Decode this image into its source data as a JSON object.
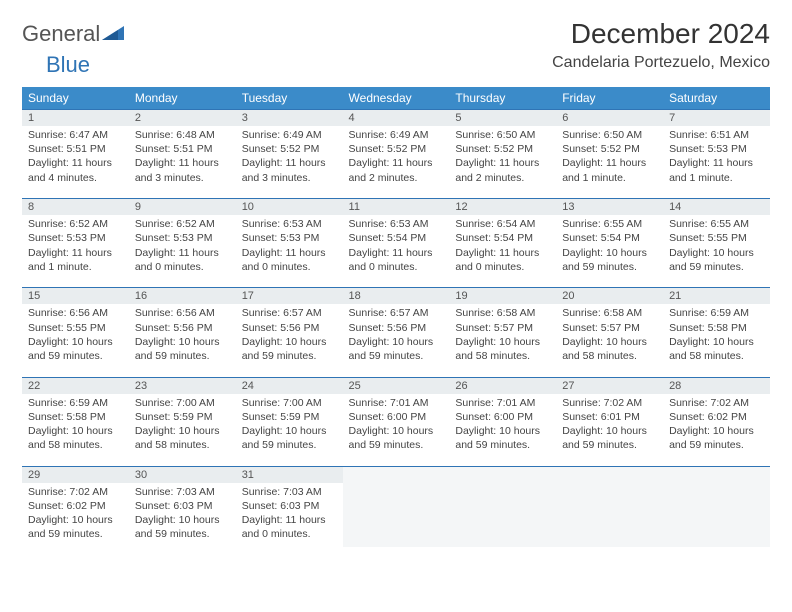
{
  "brand": {
    "name1": "General",
    "name2": "Blue"
  },
  "title": "December 2024",
  "location": "Candelaria Portezuelo, Mexico",
  "columns": [
    "Sunday",
    "Monday",
    "Tuesday",
    "Wednesday",
    "Thursday",
    "Friday",
    "Saturday"
  ],
  "colors": {
    "header_bg": "#3b8bc9",
    "header_text": "#ffffff",
    "border": "#2f74b5",
    "daynum_bg": "#e9edef",
    "text": "#444444"
  },
  "weeks": [
    [
      {
        "n": "1",
        "sr": "Sunrise: 6:47 AM",
        "ss": "Sunset: 5:51 PM",
        "dl": "Daylight: 11 hours and 4 minutes."
      },
      {
        "n": "2",
        "sr": "Sunrise: 6:48 AM",
        "ss": "Sunset: 5:51 PM",
        "dl": "Daylight: 11 hours and 3 minutes."
      },
      {
        "n": "3",
        "sr": "Sunrise: 6:49 AM",
        "ss": "Sunset: 5:52 PM",
        "dl": "Daylight: 11 hours and 3 minutes."
      },
      {
        "n": "4",
        "sr": "Sunrise: 6:49 AM",
        "ss": "Sunset: 5:52 PM",
        "dl": "Daylight: 11 hours and 2 minutes."
      },
      {
        "n": "5",
        "sr": "Sunrise: 6:50 AM",
        "ss": "Sunset: 5:52 PM",
        "dl": "Daylight: 11 hours and 2 minutes."
      },
      {
        "n": "6",
        "sr": "Sunrise: 6:50 AM",
        "ss": "Sunset: 5:52 PM",
        "dl": "Daylight: 11 hours and 1 minute."
      },
      {
        "n": "7",
        "sr": "Sunrise: 6:51 AM",
        "ss": "Sunset: 5:53 PM",
        "dl": "Daylight: 11 hours and 1 minute."
      }
    ],
    [
      {
        "n": "8",
        "sr": "Sunrise: 6:52 AM",
        "ss": "Sunset: 5:53 PM",
        "dl": "Daylight: 11 hours and 1 minute."
      },
      {
        "n": "9",
        "sr": "Sunrise: 6:52 AM",
        "ss": "Sunset: 5:53 PM",
        "dl": "Daylight: 11 hours and 0 minutes."
      },
      {
        "n": "10",
        "sr": "Sunrise: 6:53 AM",
        "ss": "Sunset: 5:53 PM",
        "dl": "Daylight: 11 hours and 0 minutes."
      },
      {
        "n": "11",
        "sr": "Sunrise: 6:53 AM",
        "ss": "Sunset: 5:54 PM",
        "dl": "Daylight: 11 hours and 0 minutes."
      },
      {
        "n": "12",
        "sr": "Sunrise: 6:54 AM",
        "ss": "Sunset: 5:54 PM",
        "dl": "Daylight: 11 hours and 0 minutes."
      },
      {
        "n": "13",
        "sr": "Sunrise: 6:55 AM",
        "ss": "Sunset: 5:54 PM",
        "dl": "Daylight: 10 hours and 59 minutes."
      },
      {
        "n": "14",
        "sr": "Sunrise: 6:55 AM",
        "ss": "Sunset: 5:55 PM",
        "dl": "Daylight: 10 hours and 59 minutes."
      }
    ],
    [
      {
        "n": "15",
        "sr": "Sunrise: 6:56 AM",
        "ss": "Sunset: 5:55 PM",
        "dl": "Daylight: 10 hours and 59 minutes."
      },
      {
        "n": "16",
        "sr": "Sunrise: 6:56 AM",
        "ss": "Sunset: 5:56 PM",
        "dl": "Daylight: 10 hours and 59 minutes."
      },
      {
        "n": "17",
        "sr": "Sunrise: 6:57 AM",
        "ss": "Sunset: 5:56 PM",
        "dl": "Daylight: 10 hours and 59 minutes."
      },
      {
        "n": "18",
        "sr": "Sunrise: 6:57 AM",
        "ss": "Sunset: 5:56 PM",
        "dl": "Daylight: 10 hours and 59 minutes."
      },
      {
        "n": "19",
        "sr": "Sunrise: 6:58 AM",
        "ss": "Sunset: 5:57 PM",
        "dl": "Daylight: 10 hours and 58 minutes."
      },
      {
        "n": "20",
        "sr": "Sunrise: 6:58 AM",
        "ss": "Sunset: 5:57 PM",
        "dl": "Daylight: 10 hours and 58 minutes."
      },
      {
        "n": "21",
        "sr": "Sunrise: 6:59 AM",
        "ss": "Sunset: 5:58 PM",
        "dl": "Daylight: 10 hours and 58 minutes."
      }
    ],
    [
      {
        "n": "22",
        "sr": "Sunrise: 6:59 AM",
        "ss": "Sunset: 5:58 PM",
        "dl": "Daylight: 10 hours and 58 minutes."
      },
      {
        "n": "23",
        "sr": "Sunrise: 7:00 AM",
        "ss": "Sunset: 5:59 PM",
        "dl": "Daylight: 10 hours and 58 minutes."
      },
      {
        "n": "24",
        "sr": "Sunrise: 7:00 AM",
        "ss": "Sunset: 5:59 PM",
        "dl": "Daylight: 10 hours and 59 minutes."
      },
      {
        "n": "25",
        "sr": "Sunrise: 7:01 AM",
        "ss": "Sunset: 6:00 PM",
        "dl": "Daylight: 10 hours and 59 minutes."
      },
      {
        "n": "26",
        "sr": "Sunrise: 7:01 AM",
        "ss": "Sunset: 6:00 PM",
        "dl": "Daylight: 10 hours and 59 minutes."
      },
      {
        "n": "27",
        "sr": "Sunrise: 7:02 AM",
        "ss": "Sunset: 6:01 PM",
        "dl": "Daylight: 10 hours and 59 minutes."
      },
      {
        "n": "28",
        "sr": "Sunrise: 7:02 AM",
        "ss": "Sunset: 6:02 PM",
        "dl": "Daylight: 10 hours and 59 minutes."
      }
    ],
    [
      {
        "n": "29",
        "sr": "Sunrise: 7:02 AM",
        "ss": "Sunset: 6:02 PM",
        "dl": "Daylight: 10 hours and 59 minutes."
      },
      {
        "n": "30",
        "sr": "Sunrise: 7:03 AM",
        "ss": "Sunset: 6:03 PM",
        "dl": "Daylight: 10 hours and 59 minutes."
      },
      {
        "n": "31",
        "sr": "Sunrise: 7:03 AM",
        "ss": "Sunset: 6:03 PM",
        "dl": "Daylight: 11 hours and 0 minutes."
      },
      {
        "empty": true
      },
      {
        "empty": true
      },
      {
        "empty": true
      },
      {
        "empty": true
      }
    ]
  ]
}
